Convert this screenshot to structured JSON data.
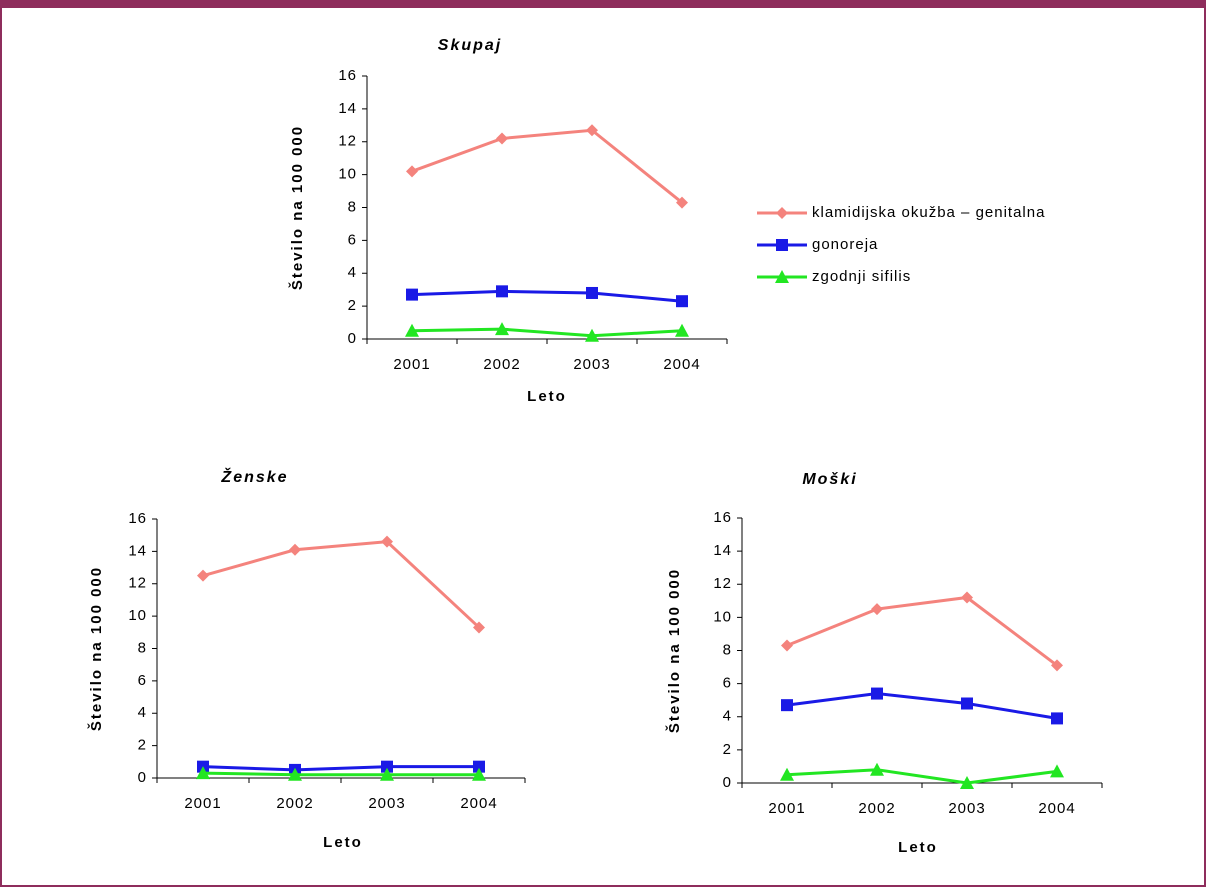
{
  "chart_data": [
    {
      "type": "line",
      "title": "Skupaj",
      "x_label": "Leto",
      "y_label": "Število na 100 000",
      "categories": [
        "2001",
        "2002",
        "2003",
        "2004"
      ],
      "ylim": [
        0,
        16
      ],
      "yticks": [
        0,
        2,
        4,
        6,
        8,
        10,
        12,
        14,
        16
      ],
      "legend": "right",
      "series": [
        {
          "name": "klamidijska okužba – genitalna",
          "color": "#f4837d",
          "marker": "diamond",
          "values": [
            10.2,
            12.2,
            12.7,
            8.3
          ]
        },
        {
          "name": "gonoreja",
          "color": "#1a1ae6",
          "marker": "square",
          "values": [
            2.7,
            2.9,
            2.8,
            2.3
          ]
        },
        {
          "name": "zgodnji sifilis",
          "color": "#22e622",
          "marker": "triangle",
          "values": [
            0.5,
            0.6,
            0.2,
            0.5
          ]
        }
      ]
    },
    {
      "type": "line",
      "title": "Ženske",
      "x_label": "Leto",
      "y_label": "Število na 100 000",
      "categories": [
        "2001",
        "2002",
        "2003",
        "2004"
      ],
      "ylim": [
        0,
        16
      ],
      "yticks": [
        0,
        2,
        4,
        6,
        8,
        10,
        12,
        14,
        16
      ],
      "series": [
        {
          "color": "#f4837d",
          "marker": "diamond",
          "values": [
            12.5,
            14.1,
            14.6,
            9.3
          ]
        },
        {
          "color": "#1a1ae6",
          "marker": "square",
          "values": [
            0.7,
            0.5,
            0.7,
            0.7
          ]
        },
        {
          "color": "#22e622",
          "marker": "triangle",
          "values": [
            0.3,
            0.2,
            0.2,
            0.2
          ]
        }
      ]
    },
    {
      "type": "line",
      "title": "Moški",
      "x_label": "Leto",
      "y_label": "Število na 100 000",
      "categories": [
        "2001",
        "2002",
        "2003",
        "2004"
      ],
      "ylim": [
        0,
        16
      ],
      "yticks": [
        0,
        2,
        4,
        6,
        8,
        10,
        12,
        14,
        16
      ],
      "series": [
        {
          "color": "#f4837d",
          "marker": "diamond",
          "values": [
            8.3,
            10.5,
            11.2,
            7.1
          ]
        },
        {
          "color": "#1a1ae6",
          "marker": "square",
          "values": [
            4.7,
            5.4,
            4.8,
            3.9
          ]
        },
        {
          "color": "#22e622",
          "marker": "triangle",
          "values": [
            0.5,
            0.8,
            0,
            0.7
          ]
        }
      ]
    }
  ]
}
